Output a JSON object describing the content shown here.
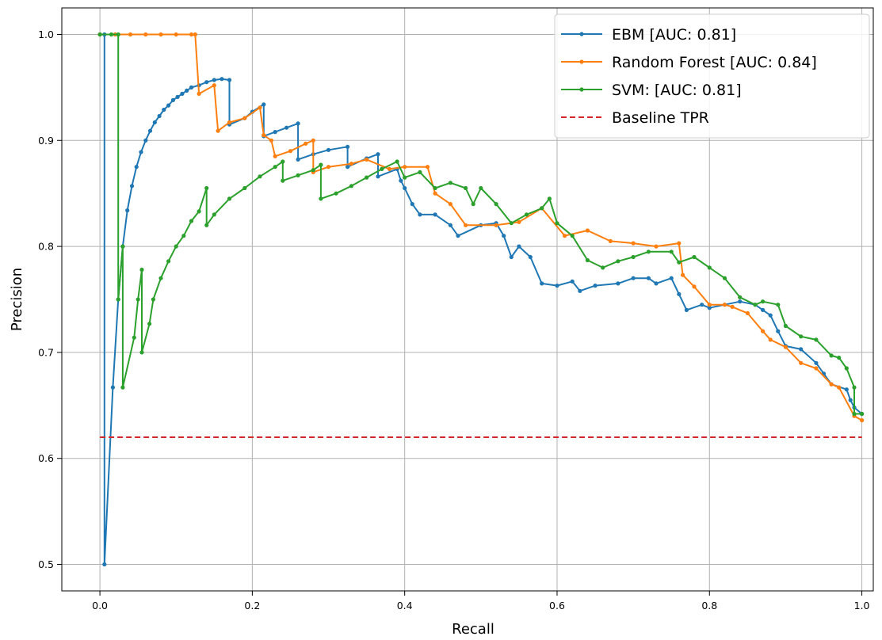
{
  "chart_data": {
    "type": "line",
    "title": "",
    "xlabel": "Recall",
    "ylabel": "Precision",
    "xlim": [
      -0.05,
      1.015
    ],
    "ylim": [
      0.475,
      1.025
    ],
    "xticks": [
      0.0,
      0.2,
      0.4,
      0.6,
      0.8,
      1.0
    ],
    "xtick_labels": [
      "0.0",
      "0.2",
      "0.4",
      "0.6",
      "0.8",
      "1.0"
    ],
    "yticks": [
      0.5,
      0.6,
      0.7,
      0.8,
      0.9,
      1.0
    ],
    "ytick_labels": [
      "0.5",
      "0.6",
      "0.7",
      "0.8",
      "0.9",
      "1.0"
    ],
    "grid": true,
    "legend_position": "top-right",
    "series": [
      {
        "name": "EBM [AUC: 0.81]",
        "color": "#1f77b4",
        "style": "solid-marker",
        "points": [
          [
            0.0,
            1.0
          ],
          [
            0.006,
            1.0
          ],
          [
            0.006,
            0.5
          ],
          [
            0.017,
            0.667
          ],
          [
            0.024,
            0.75
          ],
          [
            0.03,
            0.8
          ],
          [
            0.036,
            0.834
          ],
          [
            0.042,
            0.857
          ],
          [
            0.048,
            0.875
          ],
          [
            0.054,
            0.889
          ],
          [
            0.06,
            0.9
          ],
          [
            0.066,
            0.909
          ],
          [
            0.072,
            0.917
          ],
          [
            0.078,
            0.923
          ],
          [
            0.084,
            0.929
          ],
          [
            0.09,
            0.933
          ],
          [
            0.096,
            0.938
          ],
          [
            0.102,
            0.941
          ],
          [
            0.108,
            0.944
          ],
          [
            0.114,
            0.947
          ],
          [
            0.12,
            0.95
          ],
          [
            0.13,
            0.952
          ],
          [
            0.14,
            0.955
          ],
          [
            0.15,
            0.957
          ],
          [
            0.16,
            0.958
          ],
          [
            0.17,
            0.957
          ],
          [
            0.17,
            0.915
          ],
          [
            0.19,
            0.921
          ],
          [
            0.2,
            0.927
          ],
          [
            0.215,
            0.934
          ],
          [
            0.215,
            0.904
          ],
          [
            0.23,
            0.908
          ],
          [
            0.245,
            0.912
          ],
          [
            0.26,
            0.916
          ],
          [
            0.26,
            0.882
          ],
          [
            0.28,
            0.887
          ],
          [
            0.3,
            0.891
          ],
          [
            0.325,
            0.894
          ],
          [
            0.325,
            0.875
          ],
          [
            0.35,
            0.883
          ],
          [
            0.365,
            0.887
          ],
          [
            0.365,
            0.866
          ],
          [
            0.39,
            0.873
          ],
          [
            0.395,
            0.862
          ],
          [
            0.4,
            0.855
          ],
          [
            0.41,
            0.84
          ],
          [
            0.42,
            0.83
          ],
          [
            0.44,
            0.83
          ],
          [
            0.46,
            0.82
          ],
          [
            0.47,
            0.81
          ],
          [
            0.5,
            0.82
          ],
          [
            0.52,
            0.822
          ],
          [
            0.53,
            0.81
          ],
          [
            0.54,
            0.79
          ],
          [
            0.55,
            0.8
          ],
          [
            0.565,
            0.79
          ],
          [
            0.58,
            0.765
          ],
          [
            0.6,
            0.763
          ],
          [
            0.62,
            0.767
          ],
          [
            0.63,
            0.758
          ],
          [
            0.65,
            0.763
          ],
          [
            0.68,
            0.765
          ],
          [
            0.7,
            0.77
          ],
          [
            0.72,
            0.77
          ],
          [
            0.73,
            0.765
          ],
          [
            0.75,
            0.77
          ],
          [
            0.76,
            0.755
          ],
          [
            0.77,
            0.74
          ],
          [
            0.79,
            0.745
          ],
          [
            0.8,
            0.742
          ],
          [
            0.82,
            0.745
          ],
          [
            0.84,
            0.748
          ],
          [
            0.86,
            0.745
          ],
          [
            0.87,
            0.74
          ],
          [
            0.88,
            0.735
          ],
          [
            0.89,
            0.72
          ],
          [
            0.9,
            0.706
          ],
          [
            0.92,
            0.703
          ],
          [
            0.94,
            0.69
          ],
          [
            0.95,
            0.68
          ],
          [
            0.96,
            0.67
          ],
          [
            0.98,
            0.665
          ],
          [
            0.985,
            0.655
          ],
          [
            0.99,
            0.648
          ],
          [
            1.0,
            0.642
          ]
        ]
      },
      {
        "name": "Random Forest [AUC: 0.84]",
        "color": "#ff7f0e",
        "style": "solid-marker",
        "points": [
          [
            0.0,
            1.0
          ],
          [
            0.02,
            1.0
          ],
          [
            0.04,
            1.0
          ],
          [
            0.06,
            1.0
          ],
          [
            0.08,
            1.0
          ],
          [
            0.1,
            1.0
          ],
          [
            0.12,
            1.0
          ],
          [
            0.125,
            1.0
          ],
          [
            0.13,
            0.944
          ],
          [
            0.15,
            0.952
          ],
          [
            0.155,
            0.909
          ],
          [
            0.17,
            0.917
          ],
          [
            0.19,
            0.921
          ],
          [
            0.21,
            0.931
          ],
          [
            0.215,
            0.905
          ],
          [
            0.225,
            0.9
          ],
          [
            0.23,
            0.885
          ],
          [
            0.25,
            0.89
          ],
          [
            0.27,
            0.897
          ],
          [
            0.28,
            0.9
          ],
          [
            0.28,
            0.87
          ],
          [
            0.3,
            0.875
          ],
          [
            0.33,
            0.878
          ],
          [
            0.35,
            0.882
          ],
          [
            0.38,
            0.873
          ],
          [
            0.4,
            0.875
          ],
          [
            0.43,
            0.875
          ],
          [
            0.44,
            0.85
          ],
          [
            0.46,
            0.84
          ],
          [
            0.48,
            0.82
          ],
          [
            0.52,
            0.82
          ],
          [
            0.55,
            0.823
          ],
          [
            0.58,
            0.836
          ],
          [
            0.61,
            0.81
          ],
          [
            0.64,
            0.815
          ],
          [
            0.67,
            0.805
          ],
          [
            0.7,
            0.803
          ],
          [
            0.73,
            0.8
          ],
          [
            0.76,
            0.803
          ],
          [
            0.765,
            0.773
          ],
          [
            0.78,
            0.762
          ],
          [
            0.8,
            0.745
          ],
          [
            0.82,
            0.745
          ],
          [
            0.83,
            0.743
          ],
          [
            0.85,
            0.737
          ],
          [
            0.87,
            0.72
          ],
          [
            0.88,
            0.712
          ],
          [
            0.9,
            0.705
          ],
          [
            0.92,
            0.69
          ],
          [
            0.94,
            0.685
          ],
          [
            0.96,
            0.67
          ],
          [
            0.97,
            0.667
          ],
          [
            0.99,
            0.64
          ],
          [
            1.0,
            0.636
          ]
        ]
      },
      {
        "name": "SVM: [AUC: 0.81]",
        "color": "#2ca02c",
        "style": "solid-marker",
        "points": [
          [
            0.0,
            1.0
          ],
          [
            0.015,
            1.0
          ],
          [
            0.024,
            1.0
          ],
          [
            0.024,
            0.75
          ],
          [
            0.03,
            0.8
          ],
          [
            0.03,
            0.667
          ],
          [
            0.045,
            0.714
          ],
          [
            0.05,
            0.75
          ],
          [
            0.055,
            0.778
          ],
          [
            0.055,
            0.7
          ],
          [
            0.065,
            0.727
          ],
          [
            0.07,
            0.75
          ],
          [
            0.08,
            0.77
          ],
          [
            0.09,
            0.786
          ],
          [
            0.1,
            0.8
          ],
          [
            0.11,
            0.81
          ],
          [
            0.12,
            0.824
          ],
          [
            0.13,
            0.833
          ],
          [
            0.14,
            0.855
          ],
          [
            0.14,
            0.82
          ],
          [
            0.15,
            0.83
          ],
          [
            0.17,
            0.845
          ],
          [
            0.19,
            0.855
          ],
          [
            0.21,
            0.866
          ],
          [
            0.23,
            0.875
          ],
          [
            0.24,
            0.88
          ],
          [
            0.24,
            0.862
          ],
          [
            0.26,
            0.867
          ],
          [
            0.28,
            0.872
          ],
          [
            0.29,
            0.877
          ],
          [
            0.29,
            0.845
          ],
          [
            0.31,
            0.85
          ],
          [
            0.33,
            0.857
          ],
          [
            0.35,
            0.865
          ],
          [
            0.37,
            0.873
          ],
          [
            0.39,
            0.88
          ],
          [
            0.4,
            0.865
          ],
          [
            0.42,
            0.87
          ],
          [
            0.44,
            0.855
          ],
          [
            0.46,
            0.86
          ],
          [
            0.48,
            0.855
          ],
          [
            0.49,
            0.84
          ],
          [
            0.5,
            0.855
          ],
          [
            0.52,
            0.84
          ],
          [
            0.54,
            0.822
          ],
          [
            0.56,
            0.83
          ],
          [
            0.58,
            0.836
          ],
          [
            0.59,
            0.845
          ],
          [
            0.6,
            0.822
          ],
          [
            0.62,
            0.81
          ],
          [
            0.64,
            0.787
          ],
          [
            0.66,
            0.78
          ],
          [
            0.68,
            0.786
          ],
          [
            0.7,
            0.79
          ],
          [
            0.72,
            0.795
          ],
          [
            0.75,
            0.795
          ],
          [
            0.76,
            0.785
          ],
          [
            0.78,
            0.79
          ],
          [
            0.8,
            0.78
          ],
          [
            0.82,
            0.77
          ],
          [
            0.84,
            0.752
          ],
          [
            0.86,
            0.745
          ],
          [
            0.87,
            0.748
          ],
          [
            0.89,
            0.745
          ],
          [
            0.9,
            0.725
          ],
          [
            0.92,
            0.715
          ],
          [
            0.94,
            0.712
          ],
          [
            0.96,
            0.697
          ],
          [
            0.97,
            0.695
          ],
          [
            0.98,
            0.685
          ],
          [
            0.99,
            0.667
          ],
          [
            0.99,
            0.642
          ],
          [
            1.0,
            0.642
          ]
        ]
      },
      {
        "name": "Baseline TPR",
        "color": "#d62728",
        "style": "dashed",
        "points": [
          [
            0.0,
            0.62
          ],
          [
            1.0,
            0.62
          ]
        ]
      }
    ]
  }
}
